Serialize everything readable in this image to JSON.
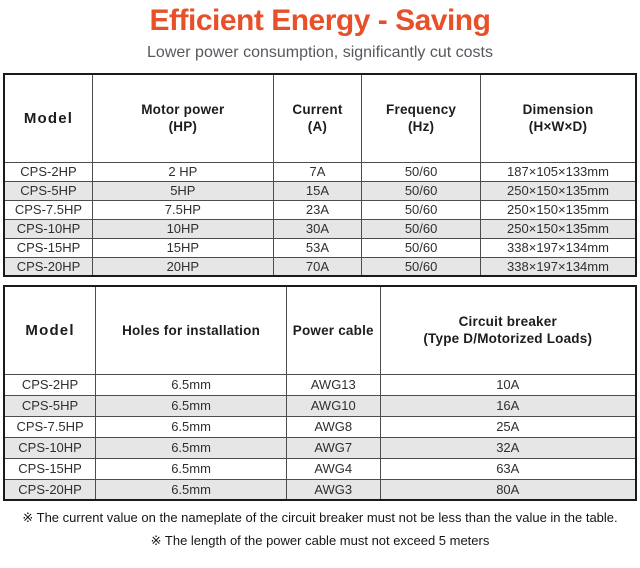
{
  "title": "Efficient Energy - Saving",
  "subtitle": "Lower power consumption, significantly cut costs",
  "colors": {
    "accent": "#e8502a",
    "subtitle_text": "#55595e",
    "row_alt": "#e6e6e6",
    "border_inner": "#4d4d4d",
    "border_outer": "#1a1a1a",
    "cell_text": "#2f2f2f",
    "footnote_text": "#161616"
  },
  "spec_table": {
    "headers": [
      [
        "Model"
      ],
      [
        "Motor power",
        "(HP)"
      ],
      [
        "Current",
        "(A)"
      ],
      [
        "Frequency",
        "(Hz)"
      ],
      [
        "Dimension",
        "(H×W×D)"
      ]
    ],
    "rows": [
      [
        "CPS-2HP",
        "2 HP",
        "7A",
        "50/60",
        "187×105×133mm"
      ],
      [
        "CPS-5HP",
        "5HP",
        "15A",
        "50/60",
        "250×150×135mm"
      ],
      [
        "CPS-7.5HP",
        "7.5HP",
        "23A",
        "50/60",
        "250×150×135mm"
      ],
      [
        "CPS-10HP",
        "10HP",
        "30A",
        "50/60",
        "250×150×135mm"
      ],
      [
        "CPS-15HP",
        "15HP",
        "53A",
        "50/60",
        "338×197×134mm"
      ],
      [
        "CPS-20HP",
        "20HP",
        "70A",
        "50/60",
        "338×197×134mm"
      ]
    ]
  },
  "install_table": {
    "headers": [
      [
        "Model"
      ],
      [
        "Holes for installation"
      ],
      [
        "Power cable"
      ],
      [
        "Circuit breaker",
        "(Type D/Motorized Loads)"
      ]
    ],
    "rows": [
      [
        "CPS-2HP",
        "6.5mm",
        "AWG13",
        "10A"
      ],
      [
        "CPS-5HP",
        "6.5mm",
        "AWG10",
        "16A"
      ],
      [
        "CPS-7.5HP",
        "6.5mm",
        "AWG8",
        "25A"
      ],
      [
        "CPS-10HP",
        "6.5mm",
        "AWG7",
        "32A"
      ],
      [
        "CPS-15HP",
        "6.5mm",
        "AWG4",
        "63A"
      ],
      [
        "CPS-20HP",
        "6.5mm",
        "AWG3",
        "80A"
      ]
    ]
  },
  "footnotes": [
    "※ The current value on the nameplate of the circuit breaker must not be less than the value in the table.",
    "※ The length of the power cable must not exceed 5 meters"
  ]
}
